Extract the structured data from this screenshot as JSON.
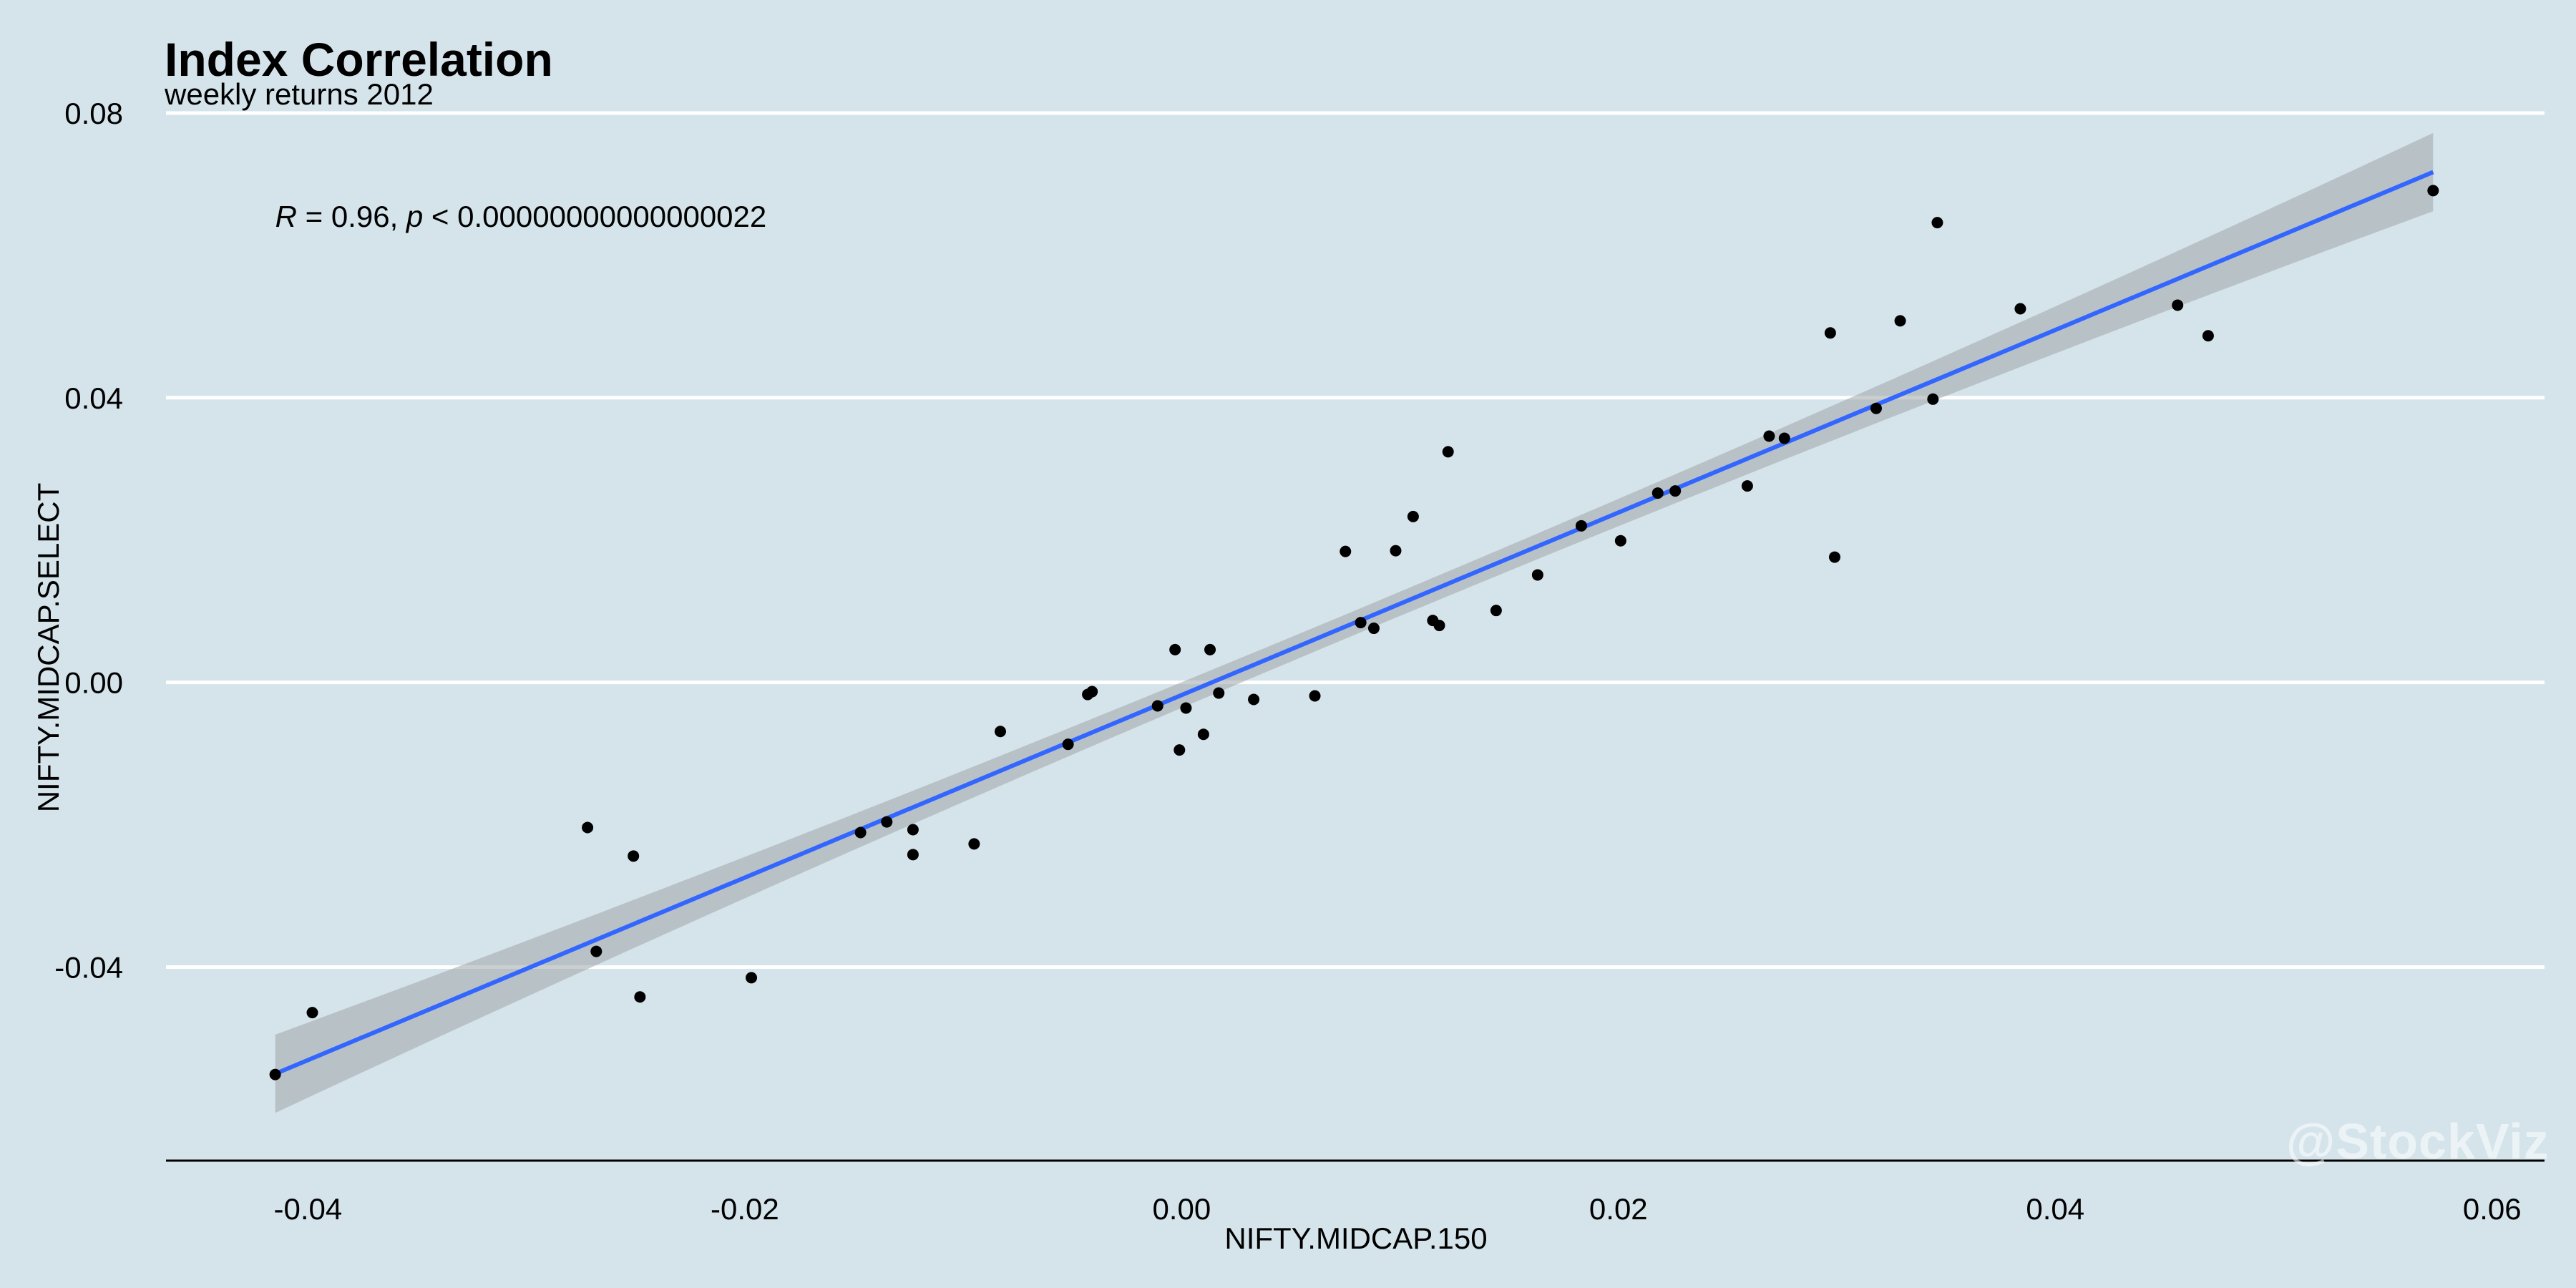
{
  "chart_data": {
    "type": "scatter",
    "title": "Index Correlation",
    "subtitle": "weekly returns 2012",
    "xlabel": "NIFTY.MIDCAP.150",
    "ylabel": "NIFTY.MIDCAP.SELECT",
    "xlim": [
      -0.0465,
      0.0624
    ],
    "ylim": [
      -0.0672,
      0.0808
    ],
    "x_ticks": [
      -0.04,
      -0.02,
      0.0,
      0.02,
      0.04,
      0.06
    ],
    "x_tick_labels": [
      "-0.04",
      "-0.02",
      "0.00",
      "0.02",
      "0.04",
      "0.06"
    ],
    "y_ticks": [
      -0.04,
      0.0,
      0.04,
      0.08
    ],
    "y_tick_labels": [
      "-0.04",
      "0.00",
      "0.04",
      "0.08"
    ],
    "grid": "horizontal major lines",
    "annotation": {
      "r_symbol": "R",
      "r_value": " = 0.96, ",
      "p_symbol": "p",
      "p_value": " < 0.00000000000000022",
      "x": -0.0415,
      "y": 0.0655
    },
    "regression": {
      "x": [
        -0.0415,
        0.0573
      ],
      "y": [
        -0.055,
        0.0717
      ],
      "band_halfwidth_ends": 0.0055,
      "band_halfwidth_mid": 0.0017,
      "line_color": "#3366ff",
      "band_color": "#a0a5a8"
    },
    "points": [
      {
        "x": -0.0415,
        "y": -0.0551
      },
      {
        "x": -0.0398,
        "y": -0.0464
      },
      {
        "x": -0.0272,
        "y": -0.0204
      },
      {
        "x": -0.0268,
        "y": -0.0378
      },
      {
        "x": -0.0251,
        "y": -0.0244
      },
      {
        "x": -0.0248,
        "y": -0.0442
      },
      {
        "x": -0.0197,
        "y": -0.0415
      },
      {
        "x": -0.0147,
        "y": -0.0211
      },
      {
        "x": -0.0135,
        "y": -0.0196
      },
      {
        "x": -0.0123,
        "y": -0.0207
      },
      {
        "x": -0.0123,
        "y": -0.0242
      },
      {
        "x": -0.0095,
        "y": -0.0227
      },
      {
        "x": -0.0083,
        "y": -0.0069
      },
      {
        "x": -0.0052,
        "y": -0.0087
      },
      {
        "x": -0.0043,
        "y": -0.0017
      },
      {
        "x": -0.0041,
        "y": -0.0013
      },
      {
        "x": -0.0011,
        "y": -0.0033
      },
      {
        "x": -0.0003,
        "y": 0.0046
      },
      {
        "x": -0.0001,
        "y": -0.0095
      },
      {
        "x": 0.0002,
        "y": -0.0036
      },
      {
        "x": 0.001,
        "y": -0.0073
      },
      {
        "x": 0.0013,
        "y": 0.0046
      },
      {
        "x": 0.0017,
        "y": -0.0015
      },
      {
        "x": 0.0033,
        "y": -0.0024
      },
      {
        "x": 0.0061,
        "y": -0.0019
      },
      {
        "x": 0.0075,
        "y": 0.0184
      },
      {
        "x": 0.0082,
        "y": 0.0084
      },
      {
        "x": 0.0088,
        "y": 0.0076
      },
      {
        "x": 0.0098,
        "y": 0.0185
      },
      {
        "x": 0.0106,
        "y": 0.0233
      },
      {
        "x": 0.0115,
        "y": 0.0087
      },
      {
        "x": 0.0118,
        "y": 0.008
      },
      {
        "x": 0.0122,
        "y": 0.0324
      },
      {
        "x": 0.0144,
        "y": 0.0101
      },
      {
        "x": 0.0163,
        "y": 0.0151
      },
      {
        "x": 0.0183,
        "y": 0.022
      },
      {
        "x": 0.0201,
        "y": 0.0199
      },
      {
        "x": 0.0218,
        "y": 0.0266
      },
      {
        "x": 0.0226,
        "y": 0.0269
      },
      {
        "x": 0.0259,
        "y": 0.0276
      },
      {
        "x": 0.0269,
        "y": 0.0346
      },
      {
        "x": 0.0276,
        "y": 0.0343
      },
      {
        "x": 0.0297,
        "y": 0.0491
      },
      {
        "x": 0.0299,
        "y": 0.0176
      },
      {
        "x": 0.0318,
        "y": 0.0385
      },
      {
        "x": 0.0329,
        "y": 0.0508
      },
      {
        "x": 0.0344,
        "y": 0.0398
      },
      {
        "x": 0.0346,
        "y": 0.0646
      },
      {
        "x": 0.0384,
        "y": 0.0525
      },
      {
        "x": 0.0456,
        "y": 0.053
      },
      {
        "x": 0.047,
        "y": 0.0487
      },
      {
        "x": 0.0573,
        "y": 0.0691
      }
    ]
  },
  "watermark": "@StockViz"
}
